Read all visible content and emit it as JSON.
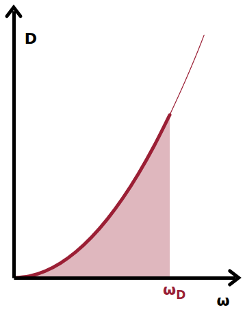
{
  "chart_data": {
    "type": "area",
    "x_label": "ω",
    "y_label": "D",
    "xlim": [
      0,
      1.42
    ],
    "ylim": [
      0,
      1.64
    ],
    "xticks": [],
    "yticks": [],
    "tick_labels": false,
    "series": [
      {
        "type": "area",
        "color": "#9b1f35",
        "x": [
          0,
          0.1,
          0.2,
          0.3,
          0.4,
          0.5,
          0.6,
          0.7,
          0.8,
          0.9,
          1.0
        ],
        "values": [
          0,
          0.01,
          0.04,
          0.09,
          0.16,
          0.25,
          0.36,
          0.49,
          0.64,
          0.81,
          1.0
        ]
      },
      {
        "type": "line",
        "color": "#9b1f35",
        "x": [
          1.0,
          1.1,
          1.2,
          1.22
        ],
        "values": [
          1.0,
          1.21,
          1.44,
          1.49
        ]
      }
    ],
    "annotations": [
      {
        "text": "ω",
        "subscript": "D",
        "x": 1.0
      }
    ]
  }
}
